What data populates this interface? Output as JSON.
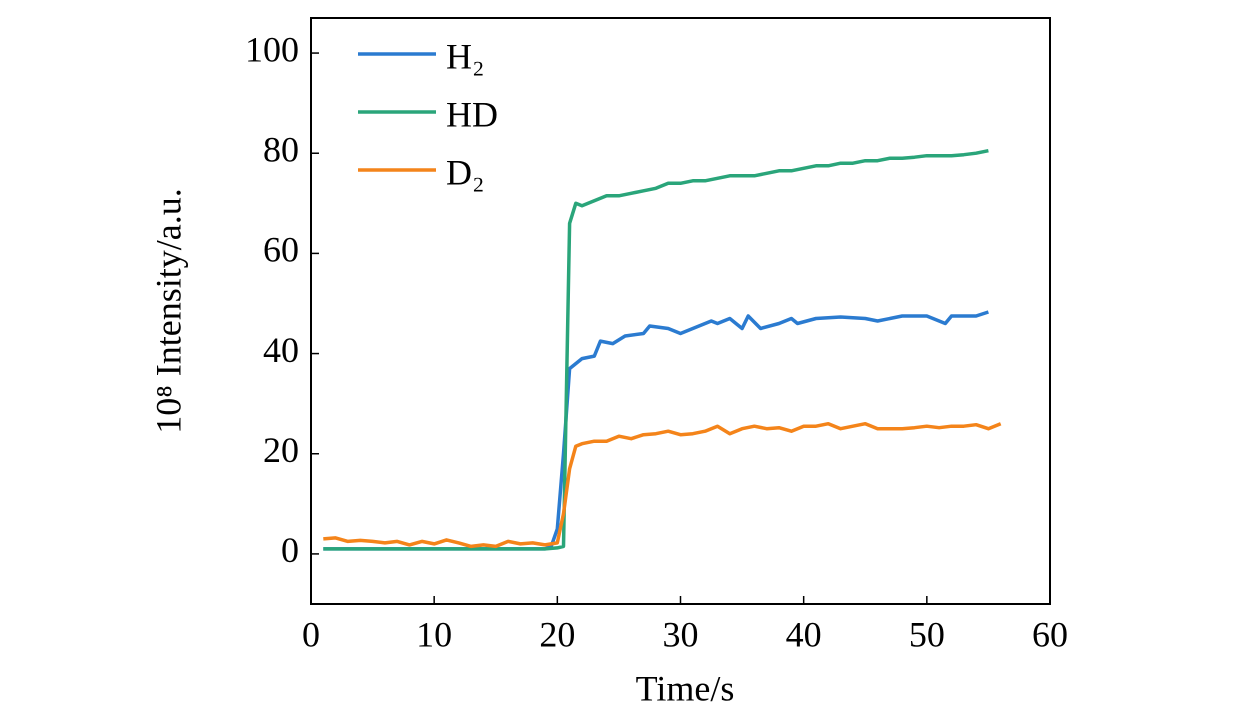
{
  "chart_data": {
    "type": "line",
    "xlabel": "Time/s",
    "ylabel": "10⁸ Intensity/a.u.",
    "xlim": [
      0,
      60
    ],
    "xticks": [
      0,
      10,
      20,
      30,
      40,
      50,
      60
    ],
    "ylim": [
      -10,
      107
    ],
    "yticks": [
      0,
      20,
      40,
      60,
      80,
      100
    ],
    "legend": "upper left",
    "series": [
      {
        "name": "H₂",
        "color": "#2b7bd0",
        "x": [
          1,
          5,
          10,
          15,
          19,
          19.5,
          20,
          20.5,
          21,
          22,
          23,
          23.5,
          24.5,
          25.5,
          27,
          27.5,
          29,
          30,
          31,
          32.5,
          33,
          34,
          35,
          35.5,
          36.5,
          38,
          39,
          39.5,
          41,
          43,
          45,
          46,
          48,
          50,
          51.5,
          52,
          54,
          55
        ],
        "values": [
          1,
          1,
          1,
          1,
          1,
          1.5,
          5,
          20,
          37,
          39,
          39.5,
          42.5,
          42,
          43.5,
          44,
          45.5,
          45,
          44,
          45,
          46.5,
          46,
          47,
          45,
          47.5,
          45,
          46,
          47,
          46,
          47,
          47.3,
          47,
          46.5,
          47.5,
          47.5,
          46,
          47.5,
          47.5,
          48.3
        ]
      },
      {
        "name": "HD",
        "color": "#2aa57a",
        "x": [
          1,
          5,
          10,
          15,
          19,
          20,
          20.5,
          21,
          21.5,
          22,
          23,
          24,
          25,
          26,
          27,
          28,
          29,
          30,
          31,
          32,
          33,
          34,
          35,
          36,
          37,
          38,
          39,
          40,
          41,
          42,
          43,
          44,
          45,
          46,
          47,
          48,
          49,
          50,
          51,
          52,
          53,
          54,
          55
        ],
        "values": [
          1,
          1,
          1,
          1,
          1,
          1.2,
          1.5,
          66,
          70,
          69.5,
          70.5,
          71.5,
          71.5,
          72,
          72.5,
          73,
          74,
          74,
          74.5,
          74.5,
          75,
          75.5,
          75.5,
          75.5,
          76,
          76.5,
          76.5,
          77,
          77.5,
          77.5,
          78,
          78,
          78.5,
          78.5,
          79,
          79,
          79.2,
          79.5,
          79.5,
          79.5,
          79.7,
          80,
          80.5
        ]
      },
      {
        "name": "D₂",
        "color": "#f4841a",
        "x": [
          1,
          2,
          3,
          4,
          5,
          6,
          7,
          8,
          9,
          10,
          11,
          12,
          13,
          14,
          15,
          16,
          17,
          18,
          19,
          20,
          20.5,
          21,
          21.5,
          22,
          23,
          24,
          25,
          26,
          27,
          28,
          29,
          30,
          31,
          32,
          33,
          34,
          35,
          36,
          37,
          38,
          39,
          40,
          41,
          42,
          43,
          44,
          45,
          46,
          47,
          48,
          49,
          50,
          51,
          52,
          53,
          54,
          55,
          56
        ],
        "values": [
          3,
          3.2,
          2.5,
          2.7,
          2.5,
          2.2,
          2.5,
          1.8,
          2.5,
          2,
          2.8,
          2.2,
          1.5,
          1.8,
          1.5,
          2.5,
          2,
          2.2,
          1.8,
          2.2,
          8,
          17,
          21.5,
          22,
          22.5,
          22.5,
          23.5,
          23,
          23.8,
          24,
          24.5,
          23.8,
          24,
          24.5,
          25.5,
          24,
          25,
          25.5,
          25,
          25.2,
          24.5,
          25.5,
          25.5,
          26,
          25,
          25.5,
          26,
          25,
          25,
          25,
          25.2,
          25.5,
          25.2,
          25.5,
          25.5,
          25.8,
          25,
          26
        ]
      }
    ]
  }
}
